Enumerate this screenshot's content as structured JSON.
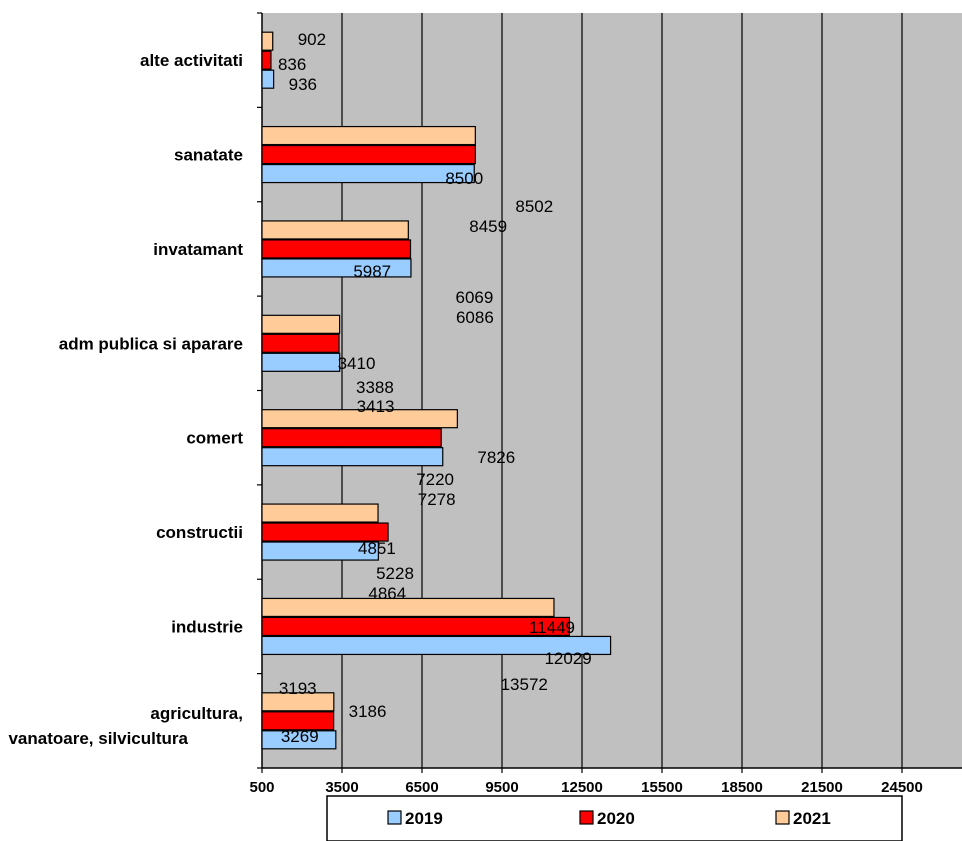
{
  "chart_data": {
    "type": "bar",
    "orientation": "horizontal",
    "categories": [
      "alte activitati",
      "sanatate",
      "invatamant",
      "adm publica si aparare",
      "comert",
      "constructii",
      "industrie",
      "agricultura, vanatoare, silvicultura"
    ],
    "series": [
      {
        "name": "2019",
        "values": [
          936,
          8459,
          6086,
          3413,
          7278,
          4864,
          13572,
          3269
        ],
        "color": "#99ccff"
      },
      {
        "name": "2020",
        "values": [
          836,
          8502,
          6069,
          3388,
          7220,
          5228,
          12029,
          3186
        ],
        "color": "#ff0000"
      },
      {
        "name": "2021",
        "values": [
          902,
          8500,
          5987,
          3410,
          7826,
          4851,
          11449,
          3193
        ],
        "color": "#ffcc99"
      }
    ],
    "xlim": [
      500,
      27500
    ],
    "xticks": [
      "500",
      "3500",
      "6500",
      "9500",
      "12500",
      "15500",
      "18500",
      "21500",
      "24500"
    ],
    "grid": true,
    "plot_background": "#c0c0c0",
    "legend_position": "bottom"
  }
}
